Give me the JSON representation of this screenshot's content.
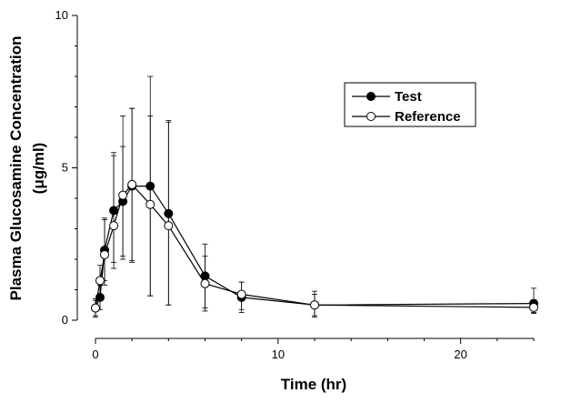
{
  "chart_data": {
    "type": "line",
    "title": "",
    "xlabel": "Time (hr)",
    "ylabel_line1": "Plasma Glucosamine Concentration",
    "ylabel_line2": "(μg/ml)",
    "xlim": [
      0,
      24
    ],
    "ylim": [
      0,
      10
    ],
    "x_ticks": [
      0,
      10,
      20
    ],
    "y_ticks": [
      0,
      5,
      10
    ],
    "grid": false,
    "legend_position": "top-right",
    "series": [
      {
        "name": "Test",
        "marker": "filled-circle",
        "color": "#000000",
        "x": [
          0,
          0.25,
          0.5,
          1,
          1.5,
          2,
          3,
          4,
          6,
          8,
          12,
          24
        ],
        "y": [
          0.4,
          0.75,
          2.3,
          3.6,
          3.9,
          4.4,
          4.4,
          3.5,
          1.45,
          0.75,
          0.5,
          0.55
        ],
        "err_up": [
          0.25,
          0.4,
          1.0,
          1.9,
          2.8,
          2.55,
          3.6,
          3.05,
          1.05,
          0.5,
          0.45,
          0.5
        ],
        "err_down": [
          0.25,
          0.4,
          1.0,
          1.7,
          1.9,
          2.5,
          3.6,
          3.0,
          1.05,
          0.5,
          0.4,
          0.3
        ]
      },
      {
        "name": "Reference",
        "marker": "open-circle",
        "color": "#000000",
        "x": [
          0,
          0.25,
          0.5,
          1,
          1.5,
          2,
          3,
          4,
          6,
          8,
          12,
          24
        ],
        "y": [
          0.4,
          1.3,
          2.15,
          3.1,
          4.1,
          4.45,
          3.8,
          3.1,
          1.2,
          0.85,
          0.5,
          0.42
        ],
        "err_up": [
          0.3,
          0.5,
          1.2,
          2.3,
          1.6,
          2.5,
          2.9,
          3.4,
          0.9,
          0.4,
          0.35,
          0.25
        ],
        "err_down": [
          0.3,
          0.5,
          1.0,
          1.4,
          2.0,
          2.5,
          3.0,
          2.6,
          0.9,
          0.5,
          0.35,
          0.2
        ]
      }
    ]
  }
}
